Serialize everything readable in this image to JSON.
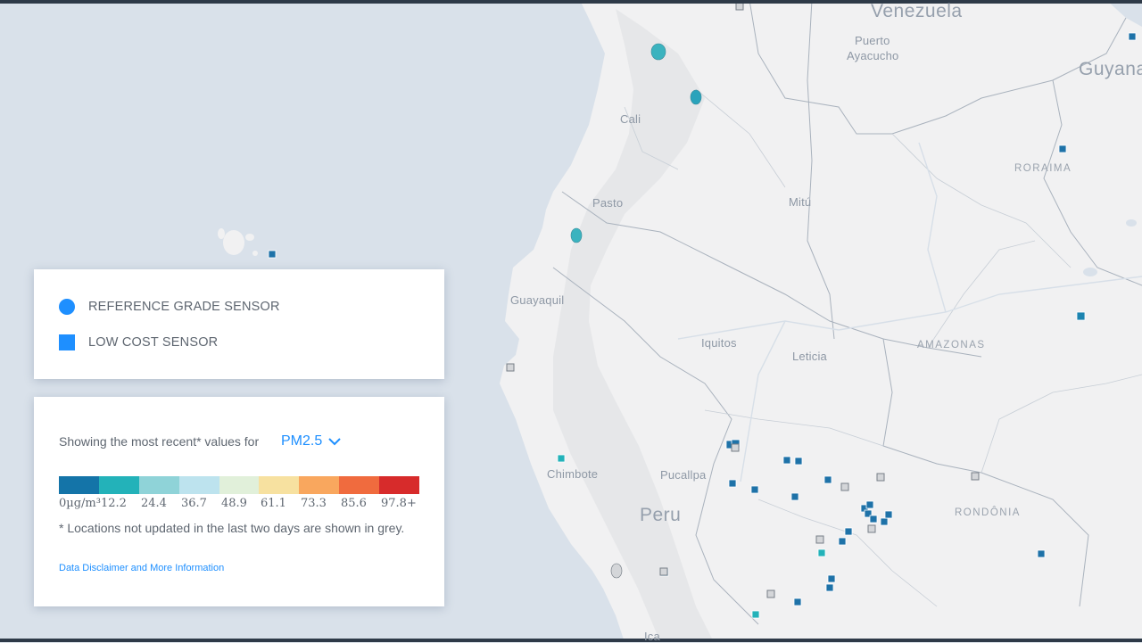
{
  "map": {
    "country_labels": [
      {
        "id": "venezuela",
        "text": "Venezuela"
      },
      {
        "id": "guyana",
        "text": "Guyana"
      },
      {
        "id": "peru",
        "text": "Peru"
      }
    ],
    "region_labels": [
      {
        "id": "roraima",
        "text": "RORAIMA"
      },
      {
        "id": "amazonas",
        "text": "AMAZONAS"
      },
      {
        "id": "rondonia",
        "text": "RONDÔNIA"
      }
    ],
    "city_labels": [
      {
        "id": "puerto-ayacucho-1",
        "text": "Puerto"
      },
      {
        "id": "puerto-ayacucho-2",
        "text": "Ayacucho"
      },
      {
        "id": "cali",
        "text": "Cali"
      },
      {
        "id": "pasto",
        "text": "Pasto"
      },
      {
        "id": "mitu",
        "text": "Mitú"
      },
      {
        "id": "guayaquil",
        "text": "Guayaquil"
      },
      {
        "id": "iquitos",
        "text": "Iquitos"
      },
      {
        "id": "leticia",
        "text": "Leticia"
      },
      {
        "id": "chimbote",
        "text": "Chimbote"
      },
      {
        "id": "pucallpa",
        "text": "Pucallpa"
      },
      {
        "id": "ica",
        "text": "Ica"
      }
    ]
  },
  "legend": {
    "reference_label": "REFERENCE GRADE SENSOR",
    "low_cost_label": "LOW COST SENSOR",
    "sensor_color": "#1e8fff"
  },
  "scale": {
    "showing_text": "Showing the most recent* values for",
    "parameter": "PM2.5",
    "colors": [
      "#1474a8",
      "#23b2b9",
      "#8fd3d8",
      "#bde3ee",
      "#e1f0da",
      "#f7e1a0",
      "#f9a75e",
      "#f06b3e",
      "#d72b2b"
    ],
    "ticks": [
      "0µg/m³",
      "12.2",
      "24.4",
      "36.7",
      "48.9",
      "61.1",
      "73.3",
      "85.6",
      "97.8+"
    ],
    "note": "* Locations not updated in the last two days are shown in grey.",
    "disclaimer": "Data Disclaimer and More Information"
  }
}
